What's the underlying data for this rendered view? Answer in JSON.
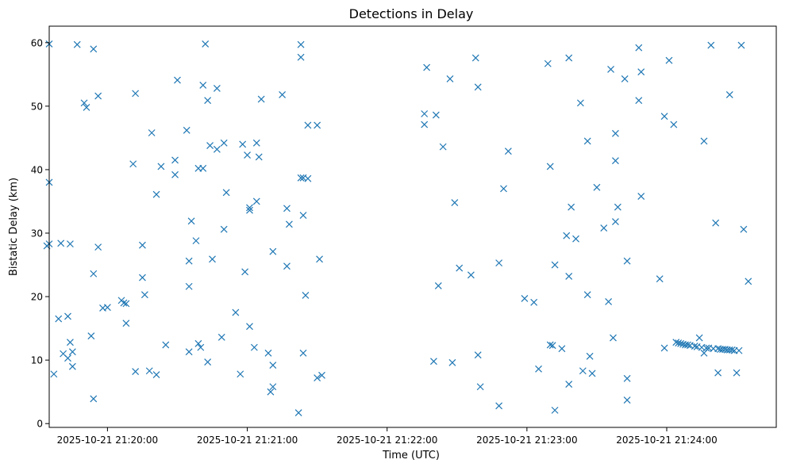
{
  "chart_data": {
    "type": "scatter",
    "title": "Detections in Delay",
    "xlabel": "Time (UTC)",
    "ylabel": "Bistatic Delay (km)",
    "x_axis": {
      "kind": "time",
      "tick_labels": [
        "2025-10-21 21:20:00",
        "2025-10-21 21:21:00",
        "2025-10-21 21:22:00",
        "2025-10-21 21:23:00",
        "2025-10-21 21:24:00"
      ],
      "range": [
        "2025-10-21 21:19:35",
        "2025-10-21 21:24:47"
      ]
    },
    "y_axis": {
      "ticks": [
        0,
        10,
        20,
        30,
        40,
        50,
        60
      ],
      "range": [
        -0.6,
        62.6
      ]
    },
    "marker": "x",
    "color": "#1f77b4",
    "grid": false,
    "points": [
      {
        "t": "21:19:35",
        "y": 59.8
      },
      {
        "t": "21:19:34",
        "y": 28.0
      },
      {
        "t": "21:19:35",
        "y": 28.3
      },
      {
        "t": "21:19:35",
        "y": 38.0
      },
      {
        "t": "21:19:37",
        "y": 7.8
      },
      {
        "t": "21:19:39",
        "y": 16.5
      },
      {
        "t": "21:19:40",
        "y": 28.4
      },
      {
        "t": "21:19:41",
        "y": 11.0
      },
      {
        "t": "21:19:43",
        "y": 10.3
      },
      {
        "t": "21:19:43",
        "y": 16.9
      },
      {
        "t": "21:19:44",
        "y": 28.3
      },
      {
        "t": "21:19:44",
        "y": 12.8
      },
      {
        "t": "21:19:45",
        "y": 11.3
      },
      {
        "t": "21:19:45",
        "y": 9.0
      },
      {
        "t": "21:19:47",
        "y": 59.7
      },
      {
        "t": "21:19:50",
        "y": 50.5
      },
      {
        "t": "21:19:51",
        "y": 49.8
      },
      {
        "t": "21:19:53",
        "y": 13.8
      },
      {
        "t": "21:19:54",
        "y": 59.0
      },
      {
        "t": "21:19:54",
        "y": 23.6
      },
      {
        "t": "21:19:54",
        "y": 3.9
      },
      {
        "t": "21:19:56",
        "y": 27.8
      },
      {
        "t": "21:19:56",
        "y": 51.6
      },
      {
        "t": "21:19:58",
        "y": 18.2
      },
      {
        "t": "21:20:00",
        "y": 18.3
      },
      {
        "t": "21:20:06",
        "y": 19.4
      },
      {
        "t": "21:20:07",
        "y": 19.0
      },
      {
        "t": "21:20:08",
        "y": 18.9
      },
      {
        "t": "21:20:08",
        "y": 15.8
      },
      {
        "t": "21:20:11",
        "y": 40.9
      },
      {
        "t": "21:20:12",
        "y": 52.0
      },
      {
        "t": "21:20:12",
        "y": 8.2
      },
      {
        "t": "21:20:15",
        "y": 28.1
      },
      {
        "t": "21:20:15",
        "y": 23.0
      },
      {
        "t": "21:20:16",
        "y": 20.3
      },
      {
        "t": "21:20:18",
        "y": 8.3
      },
      {
        "t": "21:20:19",
        "y": 45.8
      },
      {
        "t": "21:20:21",
        "y": 36.1
      },
      {
        "t": "21:20:21",
        "y": 7.7
      },
      {
        "t": "21:20:23",
        "y": 40.5
      },
      {
        "t": "21:20:25",
        "y": 12.4
      },
      {
        "t": "21:20:29",
        "y": 41.5
      },
      {
        "t": "21:20:29",
        "y": 39.2
      },
      {
        "t": "21:20:30",
        "y": 54.1
      },
      {
        "t": "21:20:34",
        "y": 46.2
      },
      {
        "t": "21:20:35",
        "y": 25.6
      },
      {
        "t": "21:20:35",
        "y": 21.6
      },
      {
        "t": "21:20:35",
        "y": 11.3
      },
      {
        "t": "21:20:36",
        "y": 31.9
      },
      {
        "t": "21:20:38",
        "y": 28.8
      },
      {
        "t": "21:20:39",
        "y": 40.2
      },
      {
        "t": "21:20:39",
        "y": 12.6
      },
      {
        "t": "21:20:40",
        "y": 12.0
      },
      {
        "t": "21:20:41",
        "y": 40.2
      },
      {
        "t": "21:20:41",
        "y": 53.3
      },
      {
        "t": "21:20:42",
        "y": 59.8
      },
      {
        "t": "21:20:43",
        "y": 50.9
      },
      {
        "t": "21:20:43",
        "y": 9.7
      },
      {
        "t": "21:20:44",
        "y": 43.8
      },
      {
        "t": "21:20:45",
        "y": 25.9
      },
      {
        "t": "21:20:47",
        "y": 43.2
      },
      {
        "t": "21:20:47",
        "y": 52.8
      },
      {
        "t": "21:20:49",
        "y": 13.6
      },
      {
        "t": "21:20:50",
        "y": 44.2
      },
      {
        "t": "21:20:50",
        "y": 30.6
      },
      {
        "t": "21:20:51",
        "y": 36.4
      },
      {
        "t": "21:20:55",
        "y": 17.5
      },
      {
        "t": "21:20:57",
        "y": 7.8
      },
      {
        "t": "21:20:58",
        "y": 44.0
      },
      {
        "t": "21:20:59",
        "y": 23.9
      },
      {
        "t": "21:21:00",
        "y": 42.3
      },
      {
        "t": "21:21:01",
        "y": 33.6
      },
      {
        "t": "21:21:01",
        "y": 34.0
      },
      {
        "t": "21:21:01",
        "y": 15.3
      },
      {
        "t": "21:21:03",
        "y": 12.0
      },
      {
        "t": "21:21:04",
        "y": 44.2
      },
      {
        "t": "21:21:04",
        "y": 35.0
      },
      {
        "t": "21:21:05",
        "y": 42.0
      },
      {
        "t": "21:21:06",
        "y": 51.1
      },
      {
        "t": "21:21:09",
        "y": 11.1
      },
      {
        "t": "21:21:10",
        "y": 5.0
      },
      {
        "t": "21:21:11",
        "y": 5.8
      },
      {
        "t": "21:21:11",
        "y": 9.2
      },
      {
        "t": "21:21:11",
        "y": 27.1
      },
      {
        "t": "21:21:15",
        "y": 51.8
      },
      {
        "t": "21:21:17",
        "y": 24.8
      },
      {
        "t": "21:21:17",
        "y": 33.9
      },
      {
        "t": "21:21:18",
        "y": 31.4
      },
      {
        "t": "21:21:22",
        "y": 1.7
      },
      {
        "t": "21:21:23",
        "y": 59.7
      },
      {
        "t": "21:21:23",
        "y": 57.7
      },
      {
        "t": "21:21:23",
        "y": 38.7
      },
      {
        "t": "21:21:24",
        "y": 38.7
      },
      {
        "t": "21:21:24",
        "y": 32.8
      },
      {
        "t": "21:21:24",
        "y": 11.1
      },
      {
        "t": "21:21:25",
        "y": 20.2
      },
      {
        "t": "21:21:26",
        "y": 38.6
      },
      {
        "t": "21:21:26",
        "y": 47.0
      },
      {
        "t": "21:21:30",
        "y": 47.0
      },
      {
        "t": "21:21:30",
        "y": 7.2
      },
      {
        "t": "21:21:31",
        "y": 25.9
      },
      {
        "t": "21:21:32",
        "y": 7.6
      },
      {
        "t": "21:22:16",
        "y": 48.8
      },
      {
        "t": "21:22:16",
        "y": 47.1
      },
      {
        "t": "21:22:17",
        "y": 56.1
      },
      {
        "t": "21:22:20",
        "y": 9.8
      },
      {
        "t": "21:22:21",
        "y": 48.6
      },
      {
        "t": "21:22:22",
        "y": 21.7
      },
      {
        "t": "21:22:24",
        "y": 43.6
      },
      {
        "t": "21:22:27",
        "y": 54.3
      },
      {
        "t": "21:22:28",
        "y": 9.6
      },
      {
        "t": "21:22:29",
        "y": 34.8
      },
      {
        "t": "21:22:31",
        "y": 24.5
      },
      {
        "t": "21:22:36",
        "y": 23.4
      },
      {
        "t": "21:22:38",
        "y": 57.6
      },
      {
        "t": "21:22:39",
        "y": 53.0
      },
      {
        "t": "21:22:39",
        "y": 10.8
      },
      {
        "t": "21:22:40",
        "y": 5.8
      },
      {
        "t": "21:22:48",
        "y": 25.3
      },
      {
        "t": "21:22:48",
        "y": 2.8
      },
      {
        "t": "21:22:50",
        "y": 37.0
      },
      {
        "t": "21:22:52",
        "y": 42.9
      },
      {
        "t": "21:22:59",
        "y": 19.7
      },
      {
        "t": "21:23:03",
        "y": 19.1
      },
      {
        "t": "21:23:05",
        "y": 8.6
      },
      {
        "t": "21:23:09",
        "y": 56.7
      },
      {
        "t": "21:23:10",
        "y": 40.5
      },
      {
        "t": "21:23:10",
        "y": 12.4
      },
      {
        "t": "21:23:11",
        "y": 12.3
      },
      {
        "t": "21:23:12",
        "y": 25.0
      },
      {
        "t": "21:23:12",
        "y": 2.1
      },
      {
        "t": "21:23:15",
        "y": 11.8
      },
      {
        "t": "21:23:17",
        "y": 29.6
      },
      {
        "t": "21:23:18",
        "y": 57.6
      },
      {
        "t": "21:23:18",
        "y": 23.2
      },
      {
        "t": "21:23:18",
        "y": 6.2
      },
      {
        "t": "21:23:19",
        "y": 34.1
      },
      {
        "t": "21:23:21",
        "y": 29.1
      },
      {
        "t": "21:23:23",
        "y": 50.5
      },
      {
        "t": "21:23:24",
        "y": 8.3
      },
      {
        "t": "21:23:26",
        "y": 44.5
      },
      {
        "t": "21:23:26",
        "y": 20.3
      },
      {
        "t": "21:23:27",
        "y": 10.6
      },
      {
        "t": "21:23:28",
        "y": 7.9
      },
      {
        "t": "21:23:30",
        "y": 37.2
      },
      {
        "t": "21:23:33",
        "y": 30.8
      },
      {
        "t": "21:23:35",
        "y": 19.2
      },
      {
        "t": "21:23:36",
        "y": 55.8
      },
      {
        "t": "21:23:37",
        "y": 13.5
      },
      {
        "t": "21:23:38",
        "y": 45.7
      },
      {
        "t": "21:23:38",
        "y": 31.8
      },
      {
        "t": "21:23:38",
        "y": 41.4
      },
      {
        "t": "21:23:39",
        "y": 34.1
      },
      {
        "t": "21:23:42",
        "y": 54.3
      },
      {
        "t": "21:23:43",
        "y": 25.6
      },
      {
        "t": "21:23:43",
        "y": 7.1
      },
      {
        "t": "21:23:43",
        "y": 3.7
      },
      {
        "t": "21:23:48",
        "y": 50.9
      },
      {
        "t": "21:23:48",
        "y": 59.2
      },
      {
        "t": "21:23:49",
        "y": 55.4
      },
      {
        "t": "21:23:49",
        "y": 35.8
      },
      {
        "t": "21:23:57",
        "y": 22.8
      },
      {
        "t": "21:23:59",
        "y": 48.4
      },
      {
        "t": "21:23:59",
        "y": 11.9
      },
      {
        "t": "21:24:01",
        "y": 57.2
      },
      {
        "t": "21:24:03",
        "y": 47.1
      },
      {
        "t": "21:24:04",
        "y": 12.8
      },
      {
        "t": "21:24:05",
        "y": 12.7
      },
      {
        "t": "21:24:06",
        "y": 12.6
      },
      {
        "t": "21:24:07",
        "y": 12.5
      },
      {
        "t": "21:24:08",
        "y": 12.4
      },
      {
        "t": "21:24:09",
        "y": 12.4
      },
      {
        "t": "21:24:10",
        "y": 12.3
      },
      {
        "t": "21:24:12",
        "y": 12.2
      },
      {
        "t": "21:24:13",
        "y": 12.1
      },
      {
        "t": "21:24:14",
        "y": 13.5
      },
      {
        "t": "21:24:15",
        "y": 12.0
      },
      {
        "t": "21:24:16",
        "y": 11.1
      },
      {
        "t": "21:24:16",
        "y": 44.5
      },
      {
        "t": "21:24:17",
        "y": 11.9
      },
      {
        "t": "21:24:18",
        "y": 11.9
      },
      {
        "t": "21:24:19",
        "y": 59.6
      },
      {
        "t": "21:24:20",
        "y": 11.8
      },
      {
        "t": "21:24:21",
        "y": 31.6
      },
      {
        "t": "21:24:22",
        "y": 11.8
      },
      {
        "t": "21:24:22",
        "y": 8.0
      },
      {
        "t": "21:24:23",
        "y": 11.7
      },
      {
        "t": "21:24:24",
        "y": 11.7
      },
      {
        "t": "21:24:25",
        "y": 11.7
      },
      {
        "t": "21:24:26",
        "y": 11.6
      },
      {
        "t": "21:24:27",
        "y": 51.8
      },
      {
        "t": "21:24:27",
        "y": 11.6
      },
      {
        "t": "21:24:28",
        "y": 11.6
      },
      {
        "t": "21:24:29",
        "y": 11.5
      },
      {
        "t": "21:24:30",
        "y": 8.0
      },
      {
        "t": "21:24:31",
        "y": 11.5
      },
      {
        "t": "21:24:32",
        "y": 59.6
      },
      {
        "t": "21:24:33",
        "y": 30.6
      },
      {
        "t": "21:24:35",
        "y": 22.4
      }
    ]
  }
}
